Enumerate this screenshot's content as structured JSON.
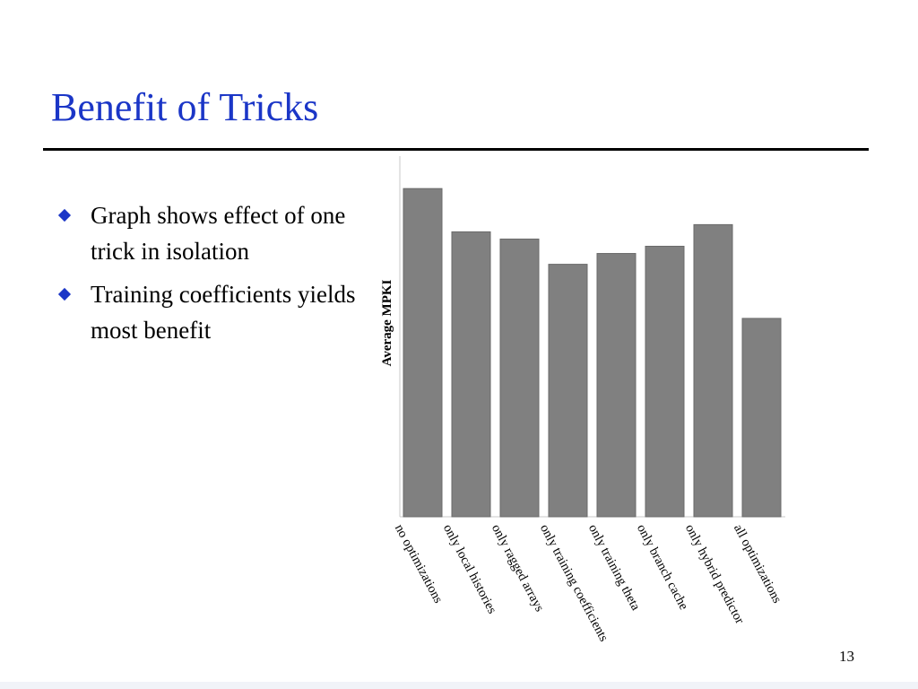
{
  "slide": {
    "title": "Benefit of Tricks",
    "bullets": [
      "Graph shows effect of one trick in isolation",
      "Training coefficients yields most benefit"
    ],
    "page_number": "13",
    "accent_color": "#1b36c7"
  },
  "chart_data": {
    "type": "bar",
    "title": "",
    "xlabel": "",
    "ylabel": "Average MPKI",
    "categories": [
      "no optimizations",
      "only local histories",
      "only ragged arrays",
      "only training coefficients",
      "only training theta",
      "only branch cache",
      "only hybrid predictor",
      "all optimizations"
    ],
    "values": [
      0.91,
      0.79,
      0.77,
      0.7,
      0.73,
      0.75,
      0.81,
      0.55
    ],
    "ylim": [
      0,
      1
    ],
    "grid": false,
    "legend": "none",
    "bar_color": "#808080"
  }
}
